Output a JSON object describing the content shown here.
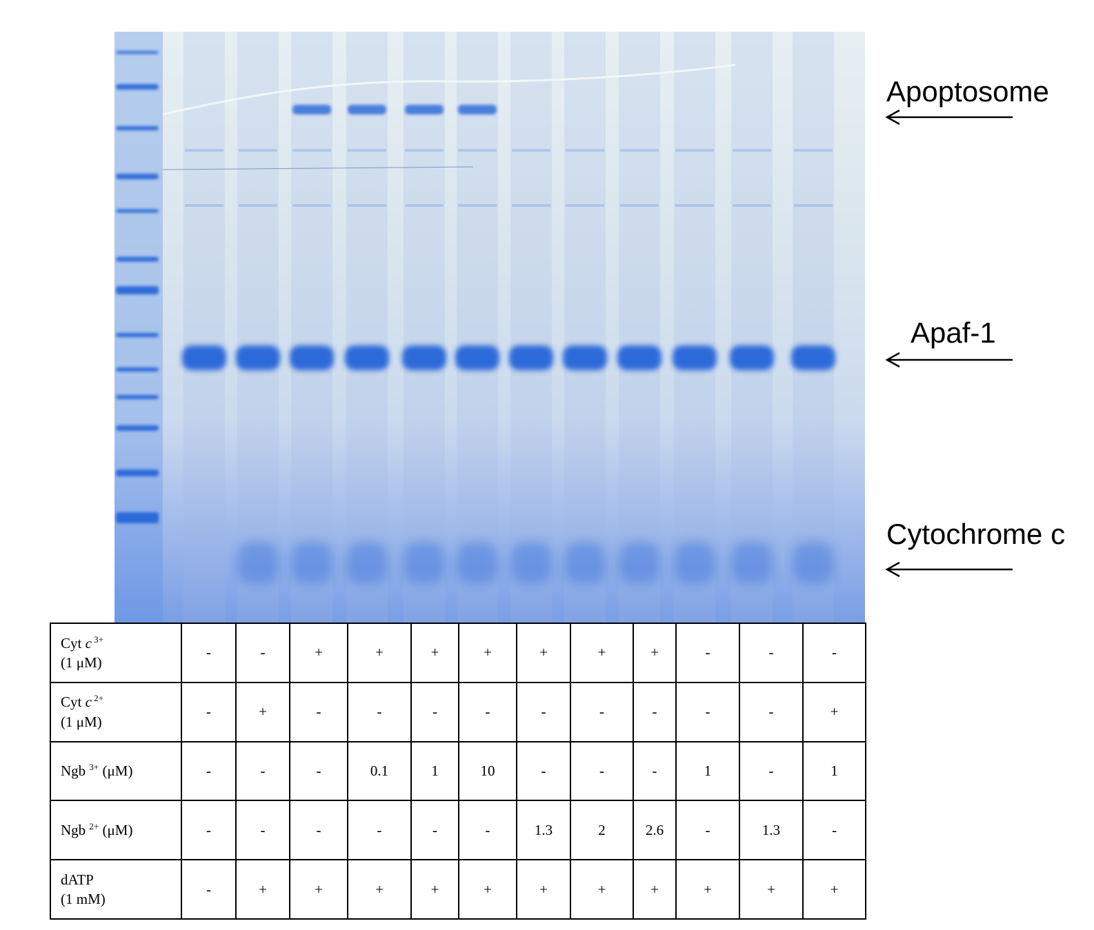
{
  "bands": {
    "apoptosome": "Apoptosome",
    "apaf1": "Apaf-1",
    "cytochrome_c": "Cytochrome c"
  },
  "gel": {
    "stain_color": "#1e5fd8",
    "background_color": "#dde8ef",
    "lanes": 12,
    "ladder": true
  },
  "table": {
    "rows": [
      {
        "label_main": "Cyt ",
        "label_italic": "c",
        "label_sup": " 3+",
        "label_line2": "(1 μM)",
        "cells": [
          "-",
          "-",
          "+",
          "+",
          "+",
          "+",
          "+",
          "+",
          "+",
          "-",
          "-",
          "-"
        ]
      },
      {
        "label_main": "Cyt ",
        "label_italic": "c",
        "label_sup": " 2+",
        "label_line2": "(1 μM)",
        "cells": [
          "-",
          "+",
          "-",
          "-",
          "-",
          "-",
          "-",
          "-",
          "-",
          "-",
          "-",
          "+"
        ]
      },
      {
        "label_main": "Ngb ",
        "label_italic": "",
        "label_sup": "3+",
        "label_after": " (μM)",
        "label_line2": "",
        "cells": [
          "-",
          "-",
          "-",
          "0.1",
          "1",
          "10",
          "-",
          "-",
          "-",
          "1",
          "-",
          "1"
        ]
      },
      {
        "label_main": "Ngb ",
        "label_italic": "",
        "label_sup": "2+",
        "label_after": " (μM)",
        "label_line2": "",
        "cells": [
          "-",
          "-",
          "-",
          "-",
          "-",
          "-",
          "1.3",
          "2",
          "2.6",
          "-",
          "1.3",
          "-"
        ]
      },
      {
        "label_main": "dATP",
        "label_italic": "",
        "label_sup": "",
        "label_line2": "(1 mM)",
        "cells": [
          "-",
          "+",
          "+",
          "+",
          "+",
          "+",
          "+",
          "+",
          "+",
          "+",
          "+",
          "+"
        ]
      }
    ]
  }
}
